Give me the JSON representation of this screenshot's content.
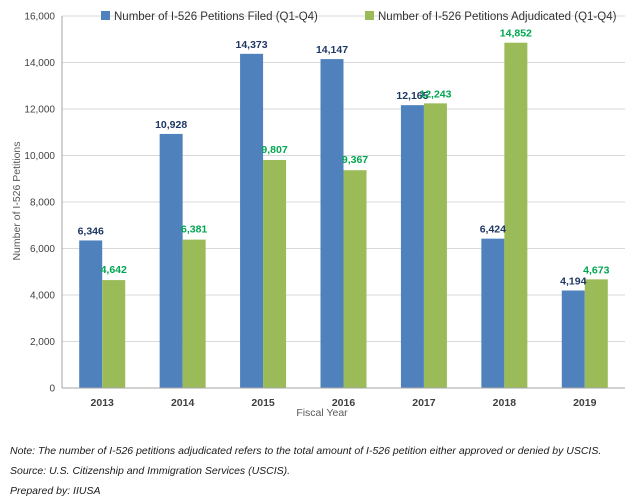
{
  "chart_data": {
    "type": "bar",
    "categories": [
      "2013",
      "2014",
      "2015",
      "2016",
      "2017",
      "2018",
      "2019"
    ],
    "series": [
      {
        "name": "Number of I-526 Petitions Filed (Q1-Q4)",
        "values": [
          6346,
          10928,
          14373,
          14147,
          12165,
          6424,
          4194
        ],
        "labels": [
          "6,346",
          "10,928",
          "14,373",
          "14,147",
          "12,165",
          "6,424",
          "4,194"
        ],
        "color": "#4f81bd",
        "label_color": "#1f3864"
      },
      {
        "name": "Number of I-526 Petitions Adjudicated (Q1-Q4)",
        "values": [
          4642,
          6381,
          9807,
          9367,
          12243,
          14852,
          4673
        ],
        "labels": [
          "4,642",
          "6,381",
          "9,807",
          "9,367",
          "12,243",
          "14,852",
          "4,673"
        ],
        "color": "#9bbb59",
        "label_color": "#00a651"
      }
    ],
    "xlabel": "Fiscal Year",
    "ylabel": "Number of I-526 Petitions",
    "ylim": [
      0,
      16000
    ],
    "yticks": [
      0,
      2000,
      4000,
      6000,
      8000,
      10000,
      12000,
      14000,
      16000
    ],
    "ytick_labels": [
      "0",
      "2,000",
      "4,000",
      "6,000",
      "8,000",
      "10,000",
      "12,000",
      "14,000",
      "16,000"
    ],
    "grid": true,
    "legend_position": "top"
  },
  "notes": {
    "note": "Note: The number of I-526 petitions adjudicated refers to the total amount of I-526 petition either approved or denied by USCIS.",
    "source": "Source: U.S. Citizenship and Immigration Services (USCIS).",
    "prepared_by": "Prepared by: IIUSA"
  }
}
